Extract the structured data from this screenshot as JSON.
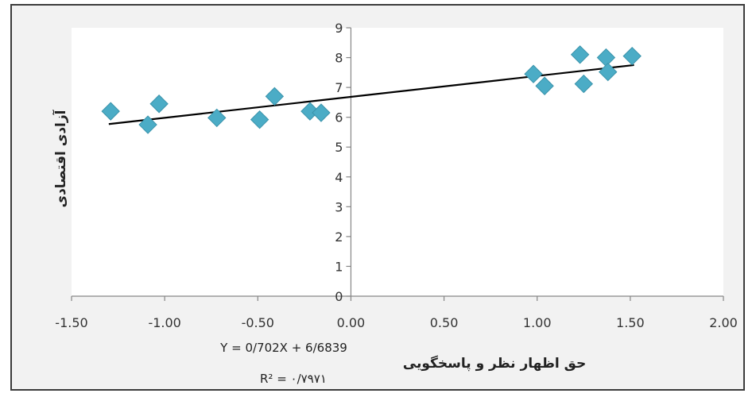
{
  "chart_data": {
    "type": "scatter",
    "xlabel": "حق اظهار نظر و پاسخگویی",
    "ylabel": "آزادی اقتصادی",
    "xlim": [
      -1.5,
      2.0
    ],
    "ylim": [
      0,
      9
    ],
    "x_ticks": [
      "-1.50",
      "-1.00",
      "-0.50",
      "0.00",
      "0.50",
      "1.00",
      "1.50",
      "2.00"
    ],
    "x_tick_values": [
      -1.5,
      -1.0,
      -0.5,
      0.0,
      0.5,
      1.0,
      1.5,
      2.0
    ],
    "y_ticks": [
      "0",
      "1",
      "2",
      "3",
      "4",
      "5",
      "6",
      "7",
      "8",
      "9"
    ],
    "y_tick_values": [
      0,
      1,
      2,
      3,
      4,
      5,
      6,
      7,
      8,
      9
    ],
    "points": [
      {
        "x": -1.29,
        "y": 6.2
      },
      {
        "x": -1.09,
        "y": 5.75
      },
      {
        "x": -1.03,
        "y": 6.45
      },
      {
        "x": -0.72,
        "y": 5.98
      },
      {
        "x": -0.49,
        "y": 5.92
      },
      {
        "x": -0.41,
        "y": 6.7
      },
      {
        "x": -0.22,
        "y": 6.2
      },
      {
        "x": -0.16,
        "y": 6.15
      },
      {
        "x": 0.98,
        "y": 7.45
      },
      {
        "x": 1.04,
        "y": 7.05
      },
      {
        "x": 1.23,
        "y": 8.1
      },
      {
        "x": 1.25,
        "y": 7.12
      },
      {
        "x": 1.37,
        "y": 8.0
      },
      {
        "x": 1.38,
        "y": 7.52
      },
      {
        "x": 1.51,
        "y": 8.05
      }
    ],
    "trendline": {
      "slope": 0.702,
      "intercept": 6.6839,
      "x_range": [
        -1.3,
        1.52
      ]
    },
    "equation_text": "Y = 0/702X + 6/6839",
    "r2_label": "R² = ",
    "r2_value": "۰/۷۹۷۱",
    "marker_color": "#4bacc6",
    "marker_shape": "diamond",
    "line_color": "#000000",
    "grid": false
  }
}
